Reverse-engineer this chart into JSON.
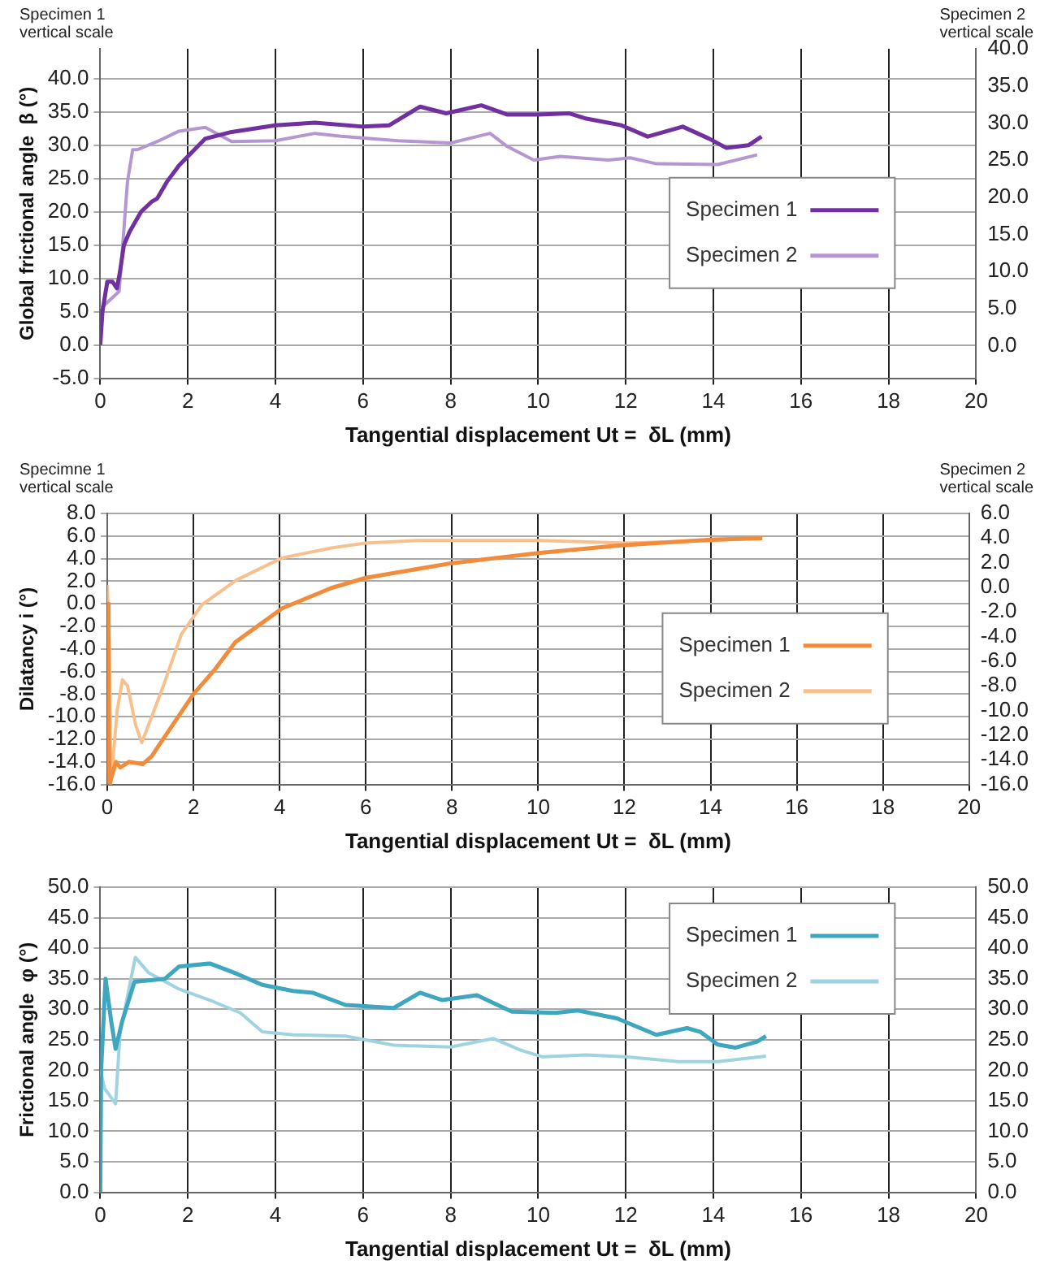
{
  "chart_data": [
    {
      "type": "line",
      "xlabel": "Tangential displacement Ut =  δL (mm)",
      "ylabel": "Global frictional angle  β (°)",
      "annotations": [
        "Specimen 1 vertical scale",
        "Specimen 2 vertical scale"
      ],
      "xlim": [
        0,
        20
      ],
      "xticks": [
        0,
        2,
        4,
        6,
        8,
        10,
        12,
        14,
        16,
        18,
        20
      ],
      "ylim": [
        -5,
        44.5
      ],
      "yticks": [
        {
          "value": -5,
          "label": "-5.0"
        },
        {
          "value": 0,
          "label": "0.0"
        },
        {
          "value": 5,
          "label": "5.0"
        },
        {
          "value": 10,
          "label": "10.0"
        },
        {
          "value": 15,
          "label": "15.0"
        },
        {
          "value": 20,
          "label": "20.0"
        },
        {
          "value": 25,
          "label": "25.0"
        },
        {
          "value": 30,
          "label": "30.0"
        },
        {
          "value": 35,
          "label": "35.0"
        },
        {
          "value": 40,
          "label": "40.0"
        }
      ],
      "y2lim": [
        -4.4,
        40
      ],
      "y2ticks": [
        {
          "value": 0,
          "label": "0.0"
        },
        {
          "value": 5,
          "label": "5.0"
        },
        {
          "value": 10,
          "label": "10.0"
        },
        {
          "value": 15,
          "label": "15.0"
        },
        {
          "value": 20,
          "label": "20.0"
        },
        {
          "value": 25,
          "label": "25.0"
        },
        {
          "value": 30,
          "label": "30.0"
        },
        {
          "value": 35,
          "label": "35.0"
        },
        {
          "value": 40,
          "label": "40.0"
        }
      ],
      "grid": true,
      "legend": "right",
      "series": [
        {
          "name": "Specimen 1",
          "color": "#7030a0",
          "x": [
            0,
            0.05,
            0.16,
            0.28,
            0.38,
            0.45,
            0.54,
            0.67,
            0.93,
            1.17,
            1.3,
            1.52,
            1.8,
            2.1,
            2.4,
            3.0,
            4.0,
            4.9,
            6.0,
            6.6,
            7.3,
            7.9,
            8.7,
            9.3,
            10.0,
            10.7,
            11.1,
            11.9,
            12.5,
            13.3,
            13.9,
            14.3,
            14.8,
            15.1
          ],
          "values": [
            0,
            5,
            9.5,
            9.5,
            8.5,
            11,
            15,
            17,
            20,
            21.5,
            22,
            24.5,
            27,
            29,
            31,
            32,
            33,
            33.4,
            32.8,
            33,
            35.8,
            34.8,
            36,
            34.6,
            34.6,
            34.8,
            34,
            33,
            31.3,
            32.8,
            31,
            29.6,
            30,
            31.3
          ]
        },
        {
          "name": "Specimen 2",
          "color": "#b497d0",
          "axis": "y2",
          "x": [
            0,
            0.1,
            0.43,
            0.5,
            0.62,
            0.74,
            0.85,
            1.3,
            1.8,
            2.4,
            3.0,
            4.0,
            4.9,
            5.5,
            6.8,
            8.0,
            8.9,
            9.3,
            9.9,
            10.5,
            11.6,
            12.1,
            12.7,
            14.1,
            15.0
          ],
          "values": [
            5,
            5.5,
            7.3,
            12.5,
            22,
            26.4,
            26.4,
            27.5,
            28.9,
            29.4,
            27.5,
            27.6,
            28.6,
            28.2,
            27.6,
            27.3,
            28.6,
            26.8,
            25,
            25.5,
            25,
            25.3,
            24.5,
            24.4,
            25.7
          ]
        }
      ]
    },
    {
      "type": "line",
      "xlabel": "Tangential displacement Ut =  δL (mm)",
      "ylabel": "Dilatancy i (°)",
      "annotations": [
        "Specimne 1 vertical scale",
        "Specimen 2 vertical scale"
      ],
      "xlim": [
        0,
        20
      ],
      "xticks": [
        0,
        2,
        4,
        6,
        8,
        10,
        12,
        14,
        16,
        18,
        20
      ],
      "ylim": [
        -16,
        8
      ],
      "yticks": [
        {
          "value": -16,
          "label": "-16.0"
        },
        {
          "value": -14,
          "label": "-14.0"
        },
        {
          "value": -12,
          "label": "-12.0"
        },
        {
          "value": -10,
          "label": "-10.0"
        },
        {
          "value": -8,
          "label": "-8.0"
        },
        {
          "value": -6,
          "label": "-6.0"
        },
        {
          "value": -4,
          "label": "-4.0"
        },
        {
          "value": -2,
          "label": "-2.0"
        },
        {
          "value": 0,
          "label": "0.0"
        },
        {
          "value": 2,
          "label": "2.0"
        },
        {
          "value": 4,
          "label": "4.0"
        },
        {
          "value": 6,
          "label": "6.0"
        },
        {
          "value": 8,
          "label": "8.0"
        }
      ],
      "y2lim": [
        -16,
        6
      ],
      "y2ticks": [
        {
          "value": -16,
          "label": "-16.0"
        },
        {
          "value": -14,
          "label": "-14.0"
        },
        {
          "value": -12,
          "label": "-12.0"
        },
        {
          "value": -10,
          "label": "-10.0"
        },
        {
          "value": -8,
          "label": "-8.0"
        },
        {
          "value": -6,
          "label": "-6.0"
        },
        {
          "value": -4,
          "label": "-4.0"
        },
        {
          "value": -2,
          "label": "-2.0"
        },
        {
          "value": 0,
          "label": "0.0"
        },
        {
          "value": 2,
          "label": "2.0"
        },
        {
          "value": 4,
          "label": "4.0"
        },
        {
          "value": 6,
          "label": "6.0"
        }
      ],
      "grid": true,
      "legend": "right",
      "series": [
        {
          "name": "Specimen 1",
          "color": "#f08c3c",
          "x": [
            0,
            0.03,
            0.05,
            0.2,
            0.3,
            0.5,
            0.82,
            1.03,
            1.17,
            2.0,
            2.5,
            2.97,
            4.06,
            5.2,
            6.0,
            8.0,
            10,
            12,
            14.1,
            15.2
          ],
          "values": [
            0,
            -8,
            -16,
            -14,
            -14.5,
            -14,
            -14.2,
            -13.5,
            -12.7,
            -8,
            -5.8,
            -3.4,
            -0.4,
            1.4,
            2.3,
            3.6,
            4.5,
            5.2,
            5.7,
            5.8
          ]
        },
        {
          "name": "Specimen 2",
          "color": "#f7c08e",
          "axis": "y2",
          "x": [
            0,
            0.05,
            0.08,
            0.23,
            0.35,
            0.47,
            0.66,
            0.8,
            1.03,
            1.28,
            1.72,
            2.2,
            3.0,
            4.06,
            5.2,
            6.0,
            7.2,
            10,
            12,
            14.1,
            15.2
          ],
          "values": [
            0.2,
            -5,
            -16,
            -10,
            -7.5,
            -8,
            -11.2,
            -12.6,
            -10.5,
            -8.2,
            -3.8,
            -1.4,
            0.6,
            2.4,
            3.2,
            3.6,
            3.8,
            3.8,
            3.6,
            3.8,
            4.0
          ]
        }
      ]
    },
    {
      "type": "line",
      "xlabel": "Tangential displacement Ut =  δL (mm)",
      "ylabel": "Frictional angle  φ (°)",
      "xlim": [
        0,
        20
      ],
      "xticks": [
        0,
        2,
        4,
        6,
        8,
        10,
        12,
        14,
        16,
        18,
        20
      ],
      "ylim": [
        0,
        50
      ],
      "yticks": [
        {
          "value": 0,
          "label": "0.0"
        },
        {
          "value": 5,
          "label": "5.0"
        },
        {
          "value": 10,
          "label": "10.0"
        },
        {
          "value": 15,
          "label": "15.0"
        },
        {
          "value": 20,
          "label": "20.0"
        },
        {
          "value": 25,
          "label": "25.0"
        },
        {
          "value": 30,
          "label": "30.0"
        },
        {
          "value": 35,
          "label": "35.0"
        },
        {
          "value": 40,
          "label": "40.0"
        },
        {
          "value": 45,
          "label": "45.0"
        },
        {
          "value": 50,
          "label": "50.0"
        }
      ],
      "y2lim": [
        0,
        50
      ],
      "y2ticks": [
        {
          "value": 0,
          "label": "0.0"
        },
        {
          "value": 5,
          "label": "5.0"
        },
        {
          "value": 10,
          "label": "10.0"
        },
        {
          "value": 15,
          "label": "15.0"
        },
        {
          "value": 20,
          "label": "20.0"
        },
        {
          "value": 25,
          "label": "25.0"
        },
        {
          "value": 30,
          "label": "30.0"
        },
        {
          "value": 35,
          "label": "35.0"
        },
        {
          "value": 40,
          "label": "40.0"
        },
        {
          "value": 45,
          "label": "45.0"
        },
        {
          "value": 50,
          "label": "50.0"
        }
      ],
      "grid": true,
      "legend": "top right",
      "series": [
        {
          "name": "Specimen 1",
          "color": "#3fa6c0",
          "x": [
            0,
            0.02,
            0.12,
            0.25,
            0.35,
            0.5,
            0.78,
            1.48,
            1.8,
            2.5,
            3.05,
            3.7,
            4.4,
            4.85,
            5.6,
            6.7,
            7.3,
            7.8,
            8.6,
            9.4,
            10.4,
            10.9,
            11.8,
            12.7,
            13.4,
            13.7,
            14.1,
            14.5,
            15.0,
            15.2
          ],
          "values": [
            0,
            20,
            35,
            28,
            23.5,
            28,
            34.5,
            35,
            37,
            37.5,
            36,
            34,
            33,
            32.7,
            30.7,
            30.2,
            32.7,
            31.5,
            32.3,
            29.6,
            29.4,
            29.8,
            28.5,
            25.8,
            26.9,
            26.3,
            24.2,
            23.7,
            24.7,
            25.6
          ]
        },
        {
          "name": "Specimen 2",
          "color": "#9fd3e0",
          "axis": "y2",
          "x": [
            0,
            0.1,
            0.35,
            0.45,
            0.8,
            1.1,
            1.8,
            2.6,
            3.2,
            3.7,
            4.4,
            5.6,
            6.7,
            8.0,
            8.98,
            9.6,
            10.1,
            11.1,
            12.0,
            13.2,
            14.1,
            15.2
          ],
          "values": [
            20,
            17,
            14.5,
            26,
            38.5,
            36,
            33.3,
            31.2,
            29.4,
            26.3,
            25.8,
            25.6,
            24.1,
            23.8,
            25.2,
            23.3,
            22.2,
            22.5,
            22.2,
            21.4,
            21.4,
            22.3
          ]
        }
      ]
    }
  ]
}
